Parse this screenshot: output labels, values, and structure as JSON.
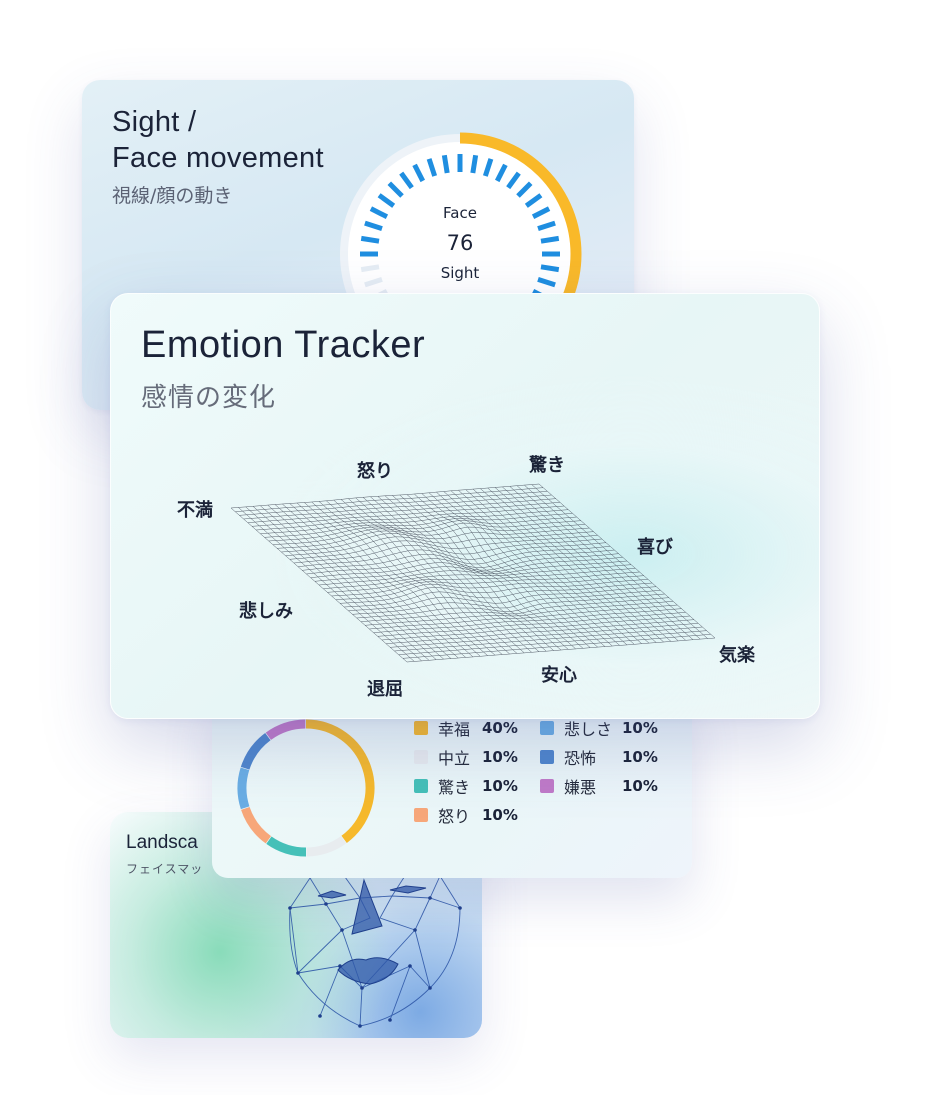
{
  "sight_card": {
    "title_line1": "Sight /",
    "title_line2": "Face movement",
    "subtitle": "視線/顔の動き",
    "gauge": {
      "face_label": "Face",
      "face_value": "76",
      "sight_label": "Sight",
      "face_value_fraction": 0.76,
      "outer_color": "#f9b929",
      "inner_color": "#1f8ee0"
    }
  },
  "tracker_card": {
    "title": "Emotion Tracker",
    "subtitle": "感情の変化",
    "axis_labels": {
      "anger": "怒り",
      "surprise": "驚き",
      "dissatisfaction": "不満",
      "joy": "喜び",
      "sadness": "悲しみ",
      "ease": "気楽",
      "relief": "安心",
      "boredom": "退屈"
    }
  },
  "distribution_card": {
    "legend": [
      {
        "label": "幸福",
        "value": "40%",
        "color": "#f6b92b",
        "fraction": 0.4
      },
      {
        "label": "中立",
        "value": "10%",
        "color": "#e8ecef",
        "fraction": 0.1
      },
      {
        "label": "驚き",
        "value": "10%",
        "color": "#45c0b8",
        "fraction": 0.1
      },
      {
        "label": "怒り",
        "value": "10%",
        "color": "#f7a77a",
        "fraction": 0.1
      },
      {
        "label": "悲しさ",
        "value": "10%",
        "color": "#6aaee4",
        "fraction": 0.1
      },
      {
        "label": "恐怖",
        "value": "10%",
        "color": "#4f86cc",
        "fraction": 0.1
      },
      {
        "label": "嫌悪",
        "value": "10%",
        "color": "#c07ac8",
        "fraction": 0.1
      }
    ]
  },
  "landscape_card": {
    "title": "Landsca",
    "subtitle": "フェイスマッ"
  }
}
